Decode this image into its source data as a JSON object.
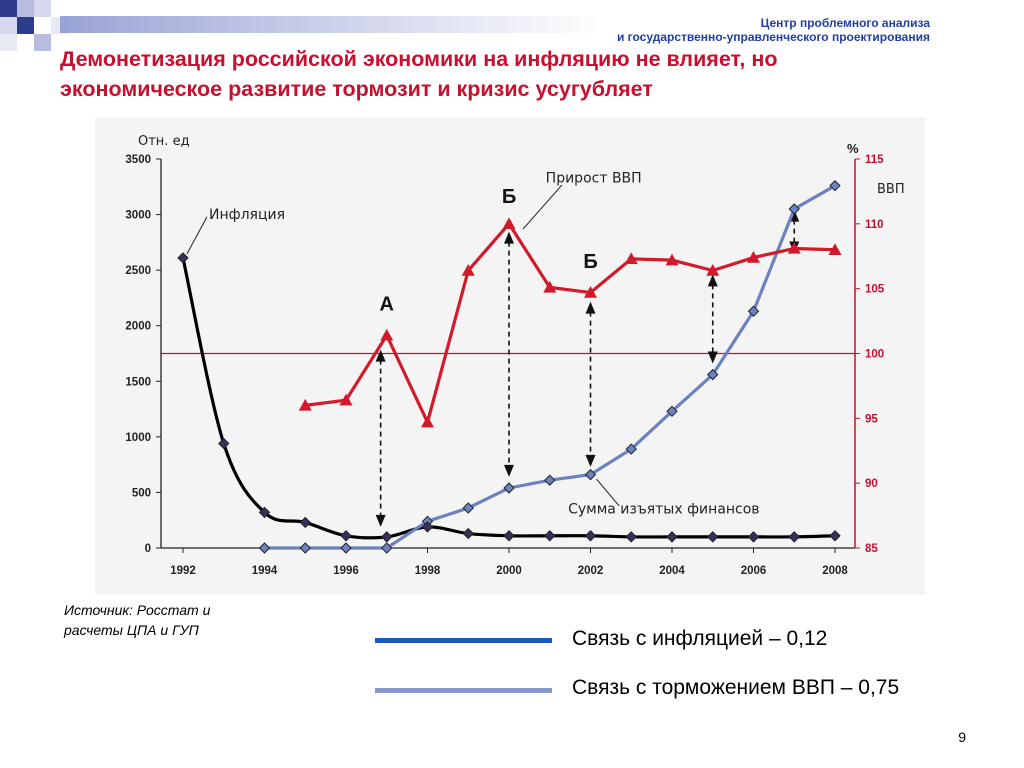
{
  "header": {
    "org_line1": "Центр проблемного анализа",
    "org_line2": "и государственно-управленческого проектирования",
    "title_line1": "Демонетизация российской экономики  на инфляцию не влияет, но",
    "title_line2": "экономическое развитие тормозит и кризис усугубляет"
  },
  "source": {
    "line1": "Источник: Росстат и",
    "line2": "расчеты ЦПА и ГУП"
  },
  "legend": [
    {
      "label": "Связь с инфляцией – 0,12",
      "color": "#1a56c4"
    },
    {
      "label": "Связь с торможением ВВП – 0,75",
      "color": "#8898cc"
    }
  ],
  "page_number": "9",
  "chart_data": {
    "type": "line",
    "y_left_label": "Отн. ед",
    "y_right_label": "%",
    "y_right_series_label": "ВВП",
    "y_left_lim": [
      0,
      3500
    ],
    "y_left_ticks": [
      "0",
      "500",
      "1000",
      "1500",
      "2000",
      "2500",
      "3000",
      "3500"
    ],
    "y_right_lim": [
      85,
      115
    ],
    "y_right_ticks": [
      "85",
      "90",
      "95",
      "100",
      "105",
      "110",
      "115"
    ],
    "x_lim": [
      1992,
      2008
    ],
    "x_ticks": [
      "1992",
      "1994",
      "1996",
      "1998",
      "2000",
      "2002",
      "2004",
      "2006",
      "2008"
    ],
    "reference_line": {
      "axis": "right",
      "value": 100
    },
    "series": [
      {
        "name": "Инфляция",
        "axis": "left",
        "color": "#000000",
        "marker": "diamond",
        "x": [
          1992,
          1993,
          1994,
          1995,
          1996,
          1997,
          1998,
          1999,
          2000,
          2001,
          2002,
          2003,
          2004,
          2005,
          2006,
          2007,
          2008
        ],
        "values": [
          2610,
          940,
          320,
          230,
          110,
          100,
          190,
          130,
          110,
          110,
          110,
          100,
          100,
          100,
          100,
          100,
          110
        ]
      },
      {
        "name": "Прирост ВВП",
        "axis": "right",
        "color": "#d11a2a",
        "marker": "triangle",
        "x": [
          1995,
          1996,
          1997,
          1998,
          1999,
          2000,
          2001,
          2002,
          2003,
          2004,
          2005,
          2006,
          2007,
          2008
        ],
        "values": [
          96,
          96.4,
          101.4,
          94.7,
          106.4,
          110,
          105.1,
          104.7,
          107.3,
          107.2,
          106.4,
          107.4,
          108.1,
          108
        ]
      },
      {
        "name": "Сумма изъятых финансов",
        "axis": "left",
        "color": "#6b82bf",
        "marker": "diamond",
        "x": [
          1994,
          1995,
          1996,
          1997,
          1998,
          1999,
          2000,
          2001,
          2002,
          2003,
          2004,
          2005,
          2006,
          2007,
          2008
        ],
        "values": [
          0,
          0,
          0,
          0,
          240,
          360,
          540,
          610,
          660,
          890,
          1230,
          1560,
          2130,
          3050,
          3260
        ]
      }
    ],
    "point_labels": [
      "А",
      "Б",
      "Б"
    ]
  }
}
